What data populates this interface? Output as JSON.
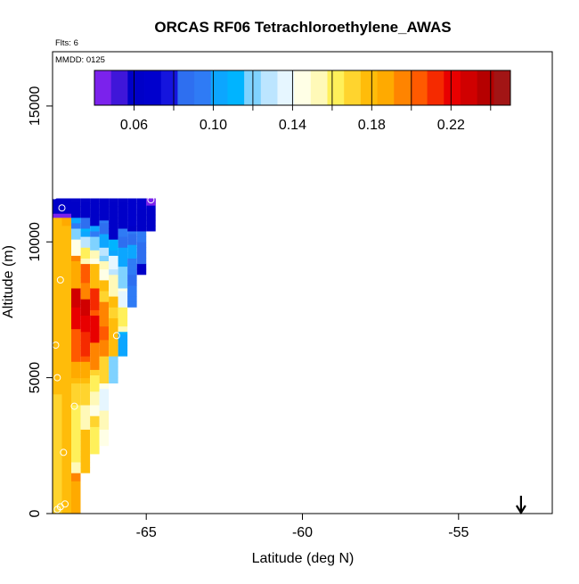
{
  "chart_data": {
    "type": "heatmap",
    "title": "ORCAS RF06 Tetrachloroethylene_AWAS",
    "flights_note": "Flts: 6",
    "mmdd_note": "MMDD: 0125",
    "xlabel": "Latitude (deg N)",
    "ylabel": "Altitude (m)",
    "xlim": [
      -68.0,
      -52.0
    ],
    "ylim": [
      0,
      17000
    ],
    "x_ticks": [
      -65,
      -60,
      -55
    ],
    "x_tick_labels": [
      "-65",
      "-60",
      "-55"
    ],
    "y_ticks": [
      0,
      5000,
      10000,
      15000
    ],
    "y_tick_labels": [
      "0",
      "5000",
      "10000",
      "15000"
    ],
    "grid": false,
    "arrow_latitude": -53.0,
    "colorbar": {
      "placement": "top inside plot",
      "range": [
        0.04,
        0.25
      ],
      "tick_values": [
        0.06,
        0.1,
        0.14,
        0.18,
        0.22
      ],
      "tick_labels": [
        "0.06",
        "0.10",
        "0.14",
        "0.18",
        "0.22"
      ],
      "colors": [
        "#7B22EC",
        "#3F16D9",
        "#0000C8",
        "#0000CD",
        "#1515DE",
        "#2E6FF0",
        "#2F7BF5",
        "#0CA6FF",
        "#00B4FF",
        "#7FD2FF",
        "#BCE5FF",
        "#E6F6FF",
        "#FFFFE6",
        "#FFF9B8",
        "#FFF05A",
        "#FFD42E",
        "#FFBC0A",
        "#FFAA00",
        "#FF8400",
        "#FF5A00",
        "#F52A00",
        "#E80000",
        "#D00000",
        "#B50000",
        "#A21515"
      ]
    },
    "columns": [
      {
        "x": -67.85,
        "runs": [
          [
            0,
            10900,
            0.175
          ],
          [
            10900,
            11050,
            0.045
          ],
          [
            11050,
            11600,
            0.06
          ]
        ]
      },
      {
        "x": -67.55,
        "runs": [
          [
            0,
            10900,
            0.18
          ],
          [
            10900,
            11050,
            0.045
          ],
          [
            11050,
            11600,
            0.06
          ]
        ]
      },
      {
        "x": -67.25,
        "runs": [
          [
            0,
            1500,
            0.19
          ],
          [
            1500,
            4000,
            0.16
          ],
          [
            4000,
            4800,
            0.17
          ],
          [
            4800,
            5600,
            0.185
          ],
          [
            5600,
            6800,
            0.205
          ],
          [
            6800,
            8300,
            0.225
          ],
          [
            8300,
            9500,
            0.19
          ],
          [
            9500,
            10100,
            0.145
          ],
          [
            10100,
            10500,
            0.12
          ],
          [
            10500,
            10900,
            0.1
          ],
          [
            10900,
            11600,
            0.06
          ]
        ]
      },
      {
        "x": -66.95,
        "runs": [
          [
            1500,
            3100,
            0.18
          ],
          [
            3100,
            4000,
            0.155
          ],
          [
            4000,
            4800,
            0.17
          ],
          [
            4800,
            5600,
            0.185
          ],
          [
            5600,
            6700,
            0.21
          ],
          [
            6700,
            7900,
            0.225
          ],
          [
            7900,
            9200,
            0.2
          ],
          [
            9200,
            9800,
            0.16
          ],
          [
            9800,
            10200,
            0.13
          ],
          [
            10200,
            10500,
            0.11
          ],
          [
            10500,
            10900,
            0.085
          ],
          [
            10900,
            11600,
            0.06
          ]
        ]
      },
      {
        "x": -66.65,
        "runs": [
          [
            2200,
            3600,
            0.165
          ],
          [
            3600,
            4500,
            0.15
          ],
          [
            4500,
            5300,
            0.165
          ],
          [
            5300,
            6300,
            0.195
          ],
          [
            6300,
            7300,
            0.22
          ],
          [
            7300,
            8300,
            0.21
          ],
          [
            8300,
            9200,
            0.18
          ],
          [
            9200,
            9700,
            0.15
          ],
          [
            9700,
            10200,
            0.12
          ],
          [
            10200,
            10600,
            0.1
          ],
          [
            10600,
            11600,
            0.062
          ]
        ]
      },
      {
        "x": -66.35,
        "runs": [
          [
            2500,
            3800,
            0.15
          ],
          [
            3800,
            4800,
            0.14
          ],
          [
            4800,
            5800,
            0.17
          ],
          [
            5800,
            6900,
            0.2
          ],
          [
            6900,
            7800,
            0.195
          ],
          [
            7800,
            8600,
            0.175
          ],
          [
            8600,
            9300,
            0.15
          ],
          [
            9300,
            9800,
            0.125
          ],
          [
            9800,
            10300,
            0.105
          ],
          [
            10300,
            10800,
            0.09
          ],
          [
            10800,
            11600,
            0.062
          ]
        ]
      },
      {
        "x": -66.05,
        "runs": [
          [
            4800,
            5800,
            0.12
          ],
          [
            5800,
            7200,
            0.18
          ],
          [
            7200,
            8000,
            0.175
          ],
          [
            8000,
            8800,
            0.155
          ],
          [
            8800,
            9500,
            0.135
          ],
          [
            9500,
            10100,
            0.11
          ],
          [
            10100,
            11600,
            0.062
          ]
        ]
      },
      {
        "x": -65.75,
        "runs": [
          [
            5800,
            6700,
            0.105
          ],
          [
            6700,
            7600,
            0.16
          ],
          [
            7600,
            8300,
            0.14
          ],
          [
            8300,
            9100,
            0.12
          ],
          [
            9100,
            9800,
            0.105
          ],
          [
            9800,
            10500,
            0.09
          ],
          [
            10500,
            11600,
            0.062
          ]
        ]
      },
      {
        "x": -65.45,
        "runs": [
          [
            7600,
            8400,
            0.095
          ],
          [
            8400,
            9000,
            0.09
          ],
          [
            9000,
            9900,
            0.1
          ],
          [
            9900,
            10400,
            0.09
          ],
          [
            10400,
            11600,
            0.068
          ]
        ]
      },
      {
        "x": -65.15,
        "runs": [
          [
            8800,
            9200,
            0.06
          ],
          [
            9200,
            10400,
            0.09
          ],
          [
            10400,
            11600,
            0.065
          ]
        ]
      },
      {
        "x": -64.85,
        "runs": [
          [
            10400,
            11600,
            0.065
          ],
          [
            11350,
            11600,
            0.045
          ]
        ]
      }
    ],
    "points": [
      {
        "x": -67.82,
        "y": 11850
      },
      {
        "x": -67.95,
        "y": 11700
      },
      {
        "x": -67.7,
        "y": 11250
      },
      {
        "x": -64.85,
        "y": 11550
      },
      {
        "x": -67.75,
        "y": 8600
      },
      {
        "x": -65.95,
        "y": 6550
      },
      {
        "x": -67.9,
        "y": 6200
      },
      {
        "x": -67.85,
        "y": 5000
      },
      {
        "x": -67.3,
        "y": 3950
      },
      {
        "x": -67.65,
        "y": 2250
      },
      {
        "x": -67.6,
        "y": 350
      },
      {
        "x": -67.75,
        "y": 250
      },
      {
        "x": -67.85,
        "y": 150
      }
    ]
  }
}
